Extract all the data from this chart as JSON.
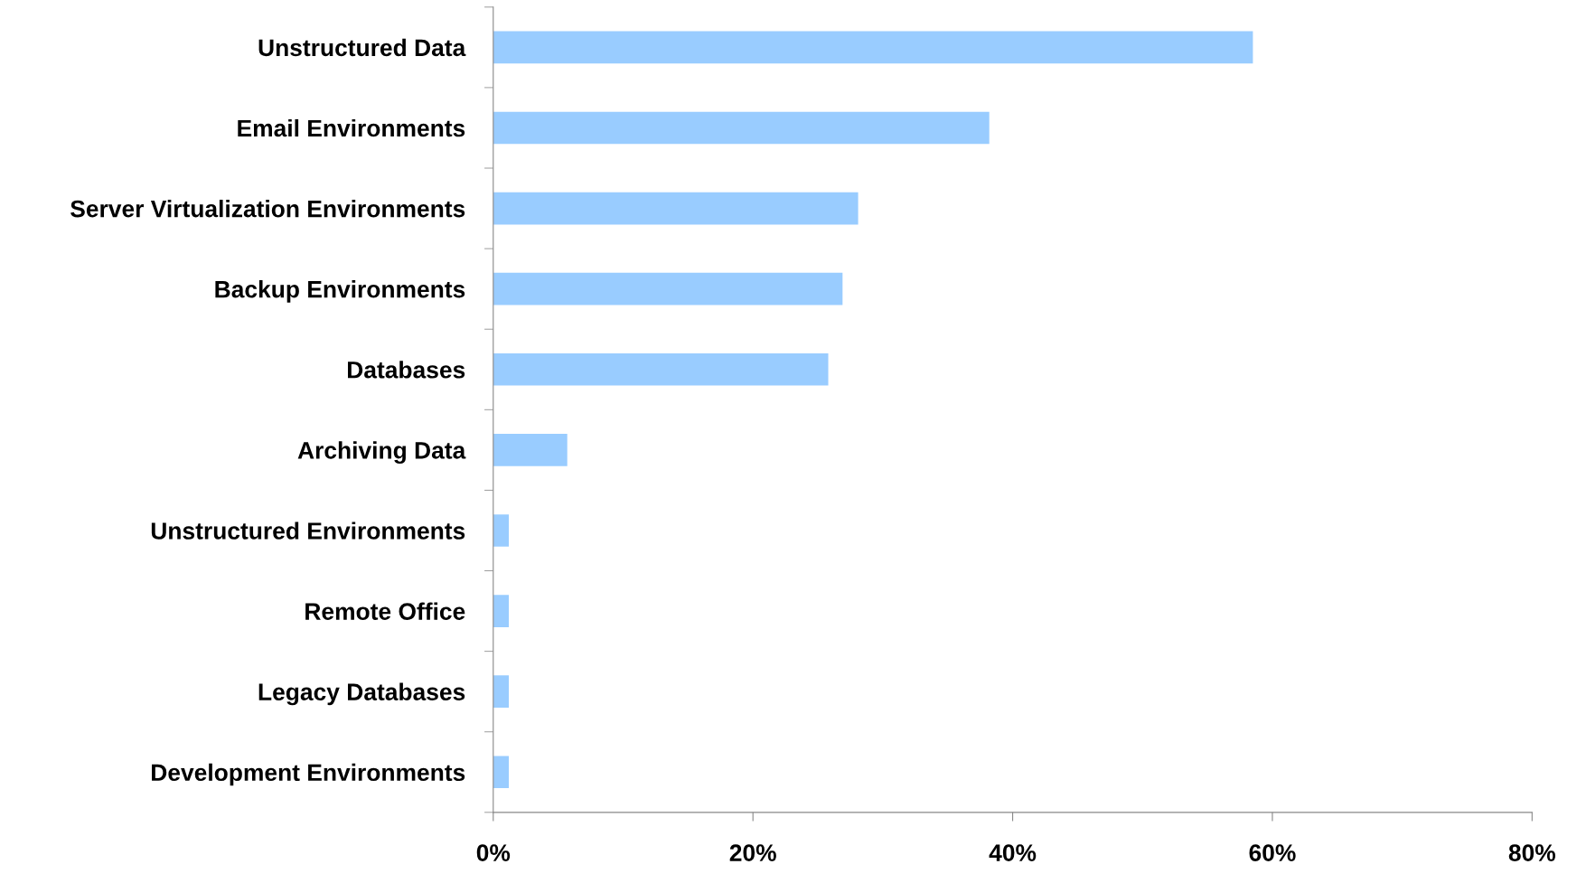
{
  "chart_data": {
    "type": "bar",
    "orientation": "horizontal",
    "categories": [
      "Unstructured Data",
      "Email Environments",
      "Server Virtualization Environments",
      "Backup Environments",
      "Databases",
      "Archiving Data",
      "Unstructured Environments",
      "Remote Office",
      "Legacy Databases",
      "Development Environments"
    ],
    "values": [
      58.5,
      38.2,
      28.1,
      26.9,
      25.8,
      5.7,
      1.2,
      1.2,
      1.2,
      1.2
    ],
    "color": "#99ccff",
    "xlim": [
      0,
      80
    ],
    "xticks": [
      {
        "value": 0,
        "label": "0%"
      },
      {
        "value": 20,
        "label": "20%"
      },
      {
        "value": 40,
        "label": "40%"
      },
      {
        "value": 60,
        "label": "60%"
      },
      {
        "value": 80,
        "label": "80%"
      }
    ],
    "grid": false,
    "legend": false
  }
}
